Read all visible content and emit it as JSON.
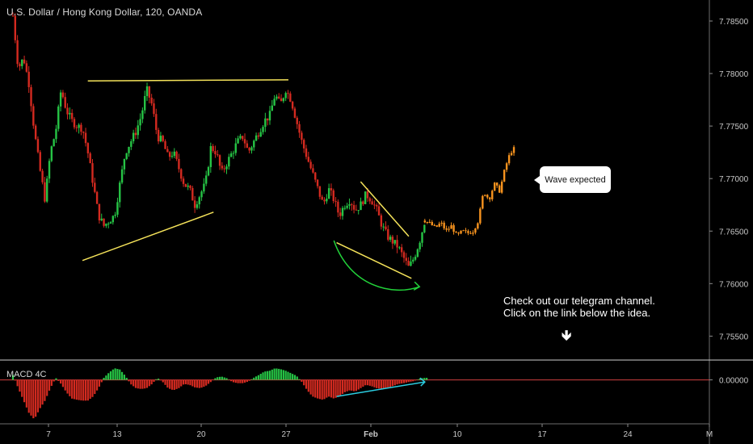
{
  "header": {
    "title": "U.S. Dollar / Hong Kong Dollar, 120, OANDA"
  },
  "macd": {
    "label": "MACD 4C"
  },
  "annotations": {
    "callout": "Wave expected",
    "note_line1": "Check out our telegram channel.",
    "note_line2": "Click on the link below the idea.",
    "arrow_glyph": "🡻"
  },
  "colors": {
    "background": "#000000",
    "bull": "#26c445",
    "bear": "#d42a20",
    "projection": "#f7931e",
    "trendline": "#f5e35a",
    "curve_arrow": "#22d33a",
    "macd_arrow": "#2bcde0",
    "axis_text": "#c8c8c8"
  },
  "chart_data": {
    "type": "candlestick",
    "symbol": "USDHKD",
    "interval": "120",
    "source": "OANDA",
    "y_ticks": [
      7.785,
      7.78,
      7.775,
      7.77,
      7.765,
      7.76,
      7.755
    ],
    "y_tick_labels": [
      "7.78500",
      "7.78000",
      "7.77500",
      "7.77000",
      "7.76500",
      "7.76000",
      "7.75500"
    ],
    "macd_tick_label": "0.00000",
    "x_labels": [
      "7",
      "13",
      "20",
      "27",
      "Feb",
      "10",
      "17",
      "24",
      "M"
    ],
    "price_path": [
      [
        0,
        7.7855
      ],
      [
        2,
        7.7805
      ],
      [
        4,
        7.7815
      ],
      [
        6,
        7.779
      ],
      [
        8,
        7.7745
      ],
      [
        10,
        7.771
      ],
      [
        12,
        7.768
      ],
      [
        14,
        7.7725
      ],
      [
        16,
        7.7745
      ],
      [
        18,
        7.7785
      ],
      [
        20,
        7.7765
      ],
      [
        22,
        7.7755
      ],
      [
        24,
        7.775
      ],
      [
        26,
        7.7748
      ],
      [
        28,
        7.7725
      ],
      [
        30,
        7.7695
      ],
      [
        32,
        7.7665
      ],
      [
        34,
        7.7655
      ],
      [
        36,
        7.766
      ],
      [
        38,
        7.7665
      ],
      [
        40,
        7.7695
      ],
      [
        42,
        7.7725
      ],
      [
        44,
        7.7735
      ],
      [
        46,
        7.7745
      ],
      [
        48,
        7.776
      ],
      [
        50,
        7.7785
      ],
      [
        52,
        7.777
      ],
      [
        54,
        7.774
      ],
      [
        56,
        7.7735
      ],
      [
        58,
        7.772
      ],
      [
        60,
        7.7725
      ],
      [
        62,
        7.771
      ],
      [
        64,
        7.7695
      ],
      [
        66,
        7.769
      ],
      [
        68,
        7.7675
      ],
      [
        70,
        7.7685
      ],
      [
        72,
        7.7695
      ],
      [
        74,
        7.773
      ],
      [
        76,
        7.7725
      ],
      [
        78,
        7.7705
      ],
      [
        80,
        7.7715
      ],
      [
        82,
        7.7725
      ],
      [
        84,
        7.7735
      ],
      [
        86,
        7.774
      ],
      [
        88,
        7.7725
      ],
      [
        90,
        7.7735
      ],
      [
        92,
        7.7745
      ],
      [
        94,
        7.7755
      ],
      [
        96,
        7.776
      ],
      [
        98,
        7.778
      ],
      [
        100,
        7.777
      ],
      [
        102,
        7.7785
      ],
      [
        104,
        7.7775
      ],
      [
        106,
        7.7755
      ],
      [
        108,
        7.7735
      ],
      [
        110,
        7.772
      ],
      [
        112,
        7.7705
      ],
      [
        114,
        7.769
      ],
      [
        116,
        7.7675
      ],
      [
        118,
        7.769
      ],
      [
        120,
        7.768
      ],
      [
        122,
        7.7665
      ],
      [
        124,
        7.7675
      ],
      [
        126,
        7.768
      ],
      [
        128,
        7.767
      ],
      [
        130,
        7.7675
      ],
      [
        132,
        7.7685
      ],
      [
        134,
        7.768
      ],
      [
        136,
        7.767
      ],
      [
        138,
        7.7655
      ],
      [
        140,
        7.7645
      ],
      [
        142,
        7.764
      ],
      [
        144,
        7.7635
      ],
      [
        146,
        7.7625
      ],
      [
        148,
        7.7615
      ],
      [
        150,
        7.7625
      ],
      [
        152,
        7.764
      ],
      [
        154,
        7.766
      ]
    ],
    "projection_path": [
      [
        154,
        7.766
      ],
      [
        156,
        7.7657
      ],
      [
        158,
        7.7653
      ],
      [
        160,
        7.7658
      ],
      [
        162,
        7.765
      ],
      [
        164,
        7.7655
      ],
      [
        166,
        7.7645
      ],
      [
        168,
        7.765
      ],
      [
        170,
        7.7648
      ],
      [
        172,
        7.765
      ],
      [
        174,
        7.766
      ],
      [
        176,
        7.7688
      ],
      [
        178,
        7.768
      ],
      [
        180,
        7.7695
      ],
      [
        182,
        7.7688
      ],
      [
        184,
        7.771
      ],
      [
        186,
        7.7725
      ],
      [
        188,
        7.773
      ]
    ],
    "trendlines": [
      [
        [
          28,
          7.7793
        ],
        [
          103,
          7.7794
        ]
      ],
      [
        [
          26,
          7.7622
        ],
        [
          75,
          7.7668
        ]
      ],
      [
        [
          121,
          7.7639
        ],
        [
          149,
          7.7605
        ]
      ],
      [
        [
          130,
          7.7697
        ],
        [
          148,
          7.7645
        ]
      ]
    ],
    "macd_histogram": {
      "range": [
        -0.001,
        0.0004
      ],
      "points": [
        [
          0,
          0.00012
        ],
        [
          2,
          -0.0002
        ],
        [
          4,
          -0.0005
        ],
        [
          6,
          -0.0008
        ],
        [
          8,
          -0.00095
        ],
        [
          10,
          -0.0007
        ],
        [
          12,
          -0.0005
        ],
        [
          14,
          -0.0002
        ],
        [
          16,
          5e-05
        ],
        [
          18,
          -0.0001
        ],
        [
          20,
          -0.0003
        ],
        [
          22,
          -0.00045
        ],
        [
          24,
          -0.00048
        ],
        [
          26,
          -0.0005
        ],
        [
          28,
          -0.0005
        ],
        [
          30,
          -0.0004
        ],
        [
          32,
          -0.0002
        ],
        [
          34,
          5e-05
        ],
        [
          36,
          0.00018
        ],
        [
          38,
          0.00028
        ],
        [
          40,
          0.00025
        ],
        [
          42,
          0.0001
        ],
        [
          44,
          -0.0001
        ],
        [
          46,
          -0.0002
        ],
        [
          48,
          -0.00022
        ],
        [
          50,
          -0.0002
        ],
        [
          52,
          -0.0001
        ],
        [
          54,
          5e-05
        ],
        [
          56,
          -5e-05
        ],
        [
          58,
          -0.0002
        ],
        [
          60,
          -0.00025
        ],
        [
          62,
          -0.0002
        ],
        [
          64,
          -0.0001
        ],
        [
          66,
          -0.00012
        ],
        [
          68,
          -0.00018
        ],
        [
          70,
          -0.0002
        ],
        [
          72,
          -0.00015
        ],
        [
          74,
          -5e-05
        ],
        [
          76,
          6e-05
        ],
        [
          78,
          8e-05
        ],
        [
          80,
          4e-05
        ],
        [
          82,
          -5e-05
        ],
        [
          84,
          -8e-05
        ],
        [
          86,
          -8e-05
        ],
        [
          88,
          -4e-05
        ],
        [
          90,
          5e-05
        ],
        [
          92,
          0.00012
        ],
        [
          94,
          0.0002
        ],
        [
          96,
          0.00022
        ],
        [
          98,
          0.00028
        ],
        [
          100,
          0.00026
        ],
        [
          102,
          0.00022
        ],
        [
          104,
          0.00016
        ],
        [
          106,
          0.0001
        ],
        [
          108,
          -5e-05
        ],
        [
          110,
          -0.00025
        ],
        [
          112,
          -0.0004
        ],
        [
          114,
          -0.00045
        ],
        [
          116,
          -0.00048
        ],
        [
          118,
          -0.0004
        ],
        [
          120,
          -0.00045
        ],
        [
          122,
          -0.0004
        ],
        [
          124,
          -0.0003
        ],
        [
          126,
          -0.00025
        ],
        [
          128,
          -0.00028
        ],
        [
          130,
          -0.0002
        ],
        [
          132,
          -0.00012
        ],
        [
          134,
          -0.00015
        ],
        [
          136,
          -0.0002
        ],
        [
          138,
          -0.00022
        ],
        [
          140,
          -0.0002
        ],
        [
          142,
          -0.00015
        ],
        [
          144,
          -0.0001
        ],
        [
          146,
          -8e-05
        ],
        [
          148,
          -5e-05
        ],
        [
          150,
          -3e-05
        ],
        [
          152,
          3e-05
        ],
        [
          154,
          5e-05
        ]
      ],
      "divergence_line": [
        [
          121,
          -0.0004
        ],
        [
          154,
          -5e-05
        ]
      ]
    }
  }
}
